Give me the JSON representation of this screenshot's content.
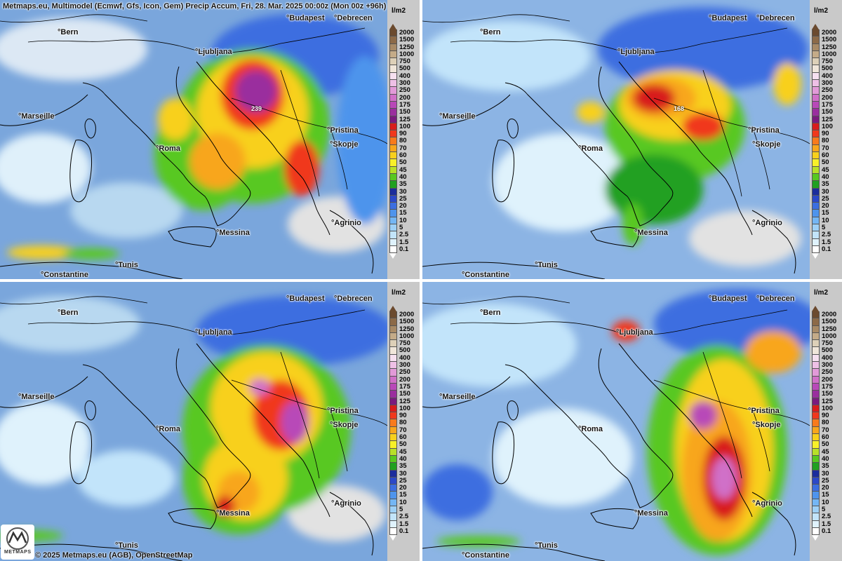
{
  "header": {
    "title": "Metmaps.eu, Multimodel (Ecmwf, Gfs, Icon, Gem) Precip Accum, Fri, 28. Mar. 2025 00:00z (Mon 00z +96h)"
  },
  "footer": {
    "copyright": "© 2025 Metmaps.eu (AGB), OpenStreetMap",
    "logo_text": "METMAPS"
  },
  "legend": {
    "unit": "l/m2",
    "labels": [
      "2000",
      "1500",
      "1250",
      "1000",
      "750",
      "500",
      "400",
      "300",
      "250",
      "200",
      "175",
      "150",
      "125",
      "100",
      "90",
      "80",
      "70",
      "60",
      "50",
      "45",
      "40",
      "35",
      "30",
      "25",
      "20",
      "15",
      "10",
      "5",
      "2.5",
      "1.5",
      "0.1"
    ],
    "colors": [
      "#6b4a2e",
      "#8c6a48",
      "#a88a66",
      "#c4ab88",
      "#ddd0b8",
      "#f0e6da",
      "#f6e0f0",
      "#eec0e6",
      "#e29ad8",
      "#d070c8",
      "#b848b8",
      "#9a2e9e",
      "#7a1a7e",
      "#d81c1c",
      "#f0381c",
      "#f87a1c",
      "#f8a61c",
      "#f8d01c",
      "#f8f028",
      "#b8e028",
      "#58c820",
      "#20a020",
      "#1c2c9c",
      "#2c48c8",
      "#3c6ee0",
      "#4e94ec",
      "#74b6f4",
      "#9ed0f6",
      "#c2e4fa",
      "#dff2fc",
      "#ffffff"
    ]
  },
  "panels": [
    {
      "id": "ecmwf",
      "max_label": "239",
      "cities": {
        "bern": "°Bern",
        "ljubljana": "°Ljubljana",
        "budapest": "°Budapest",
        "debrecen": "°Debrecen",
        "marseille": "°Marseille",
        "roma": "°Roma",
        "pristina": "°Pristina",
        "skopje": "°Skopje",
        "messina": "°Messina",
        "agrinio": "°Agrinio",
        "constantine": "°Constantine",
        "tunis": "°Tunis"
      }
    },
    {
      "id": "gfs",
      "max_label": "168",
      "cities": {
        "bern": "°Bern",
        "ljubljana": "°Ljubljana",
        "budapest": "°Budapest",
        "debrecen": "°Debrecen",
        "marseille": "°Marseille",
        "roma": "°Roma",
        "pristina": "°Pristina",
        "skopje": "°Skopje",
        "messina": "°Messina",
        "agrinio": "°Agrinio",
        "constantine": "°Constantine",
        "tunis": "°Tunis"
      }
    },
    {
      "id": "icon",
      "max_label": "",
      "cities": {
        "bern": "°Bern",
        "ljubljana": "°Ljubljana",
        "budapest": "°Budapest",
        "debrecen": "°Debrecen",
        "marseille": "°Marseille",
        "roma": "°Roma",
        "pristina": "°Pristina",
        "skopje": "°Skopje",
        "messina": "°Messina",
        "agrinio": "°Agrinio",
        "constantine": "",
        "tunis": "°Tunis"
      }
    },
    {
      "id": "gem",
      "max_label": "",
      "cities": {
        "bern": "°Bern",
        "ljubljana": "°Ljubljana",
        "budapest": "°Budapest",
        "debrecen": "°Debrecen",
        "marseille": "°Marseille",
        "roma": "°Roma",
        "pristina": "°Pristina",
        "skopje": "°Skopje",
        "messina": "°Messina",
        "agrinio": "°Agrinio",
        "constantine": "°Constantine",
        "tunis": "°Tunis"
      }
    }
  ]
}
